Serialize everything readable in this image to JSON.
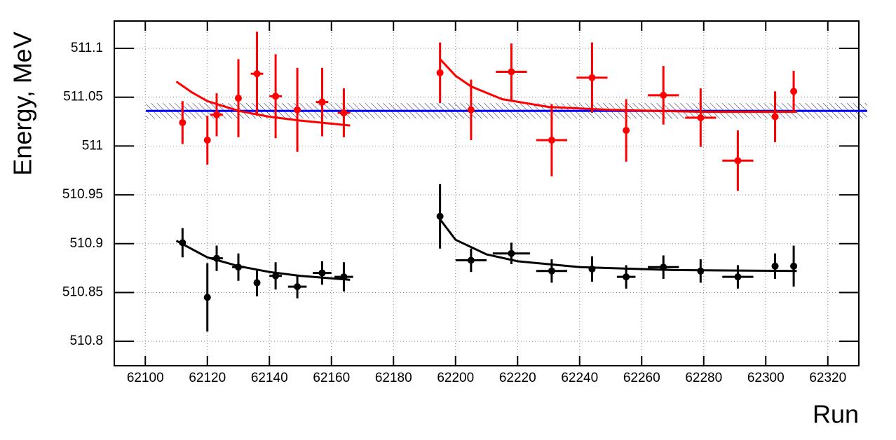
{
  "chart_data": {
    "type": "scatter",
    "x_label": "Run",
    "y_label": "Energy, MeV",
    "xlim": [
      62090,
      62330
    ],
    "ylim": [
      510.775,
      511.128
    ],
    "xticks": [
      62100,
      62120,
      62140,
      62160,
      62180,
      62200,
      62220,
      62240,
      62260,
      62280,
      62300,
      62320
    ],
    "yticks": [
      510.8,
      510.85,
      510.9,
      510.95,
      511,
      511.05,
      511.1
    ],
    "grid": true,
    "series": [
      {
        "color": "#ff0000",
        "x": [
          62112,
          62120,
          62123,
          62130,
          62136,
          62142,
          62149,
          62157,
          62164,
          62195,
          62205,
          62218,
          62231,
          62244,
          62255,
          62267,
          62279,
          62291,
          62303,
          62309
        ],
        "xerr": [
          0,
          0,
          2,
          0,
          2,
          2,
          0,
          2,
          2,
          0,
          0,
          5,
          5,
          5,
          0,
          5,
          5,
          5,
          0,
          0
        ],
        "values": [
          511.024,
          511.006,
          511.032,
          511.049,
          511.074,
          511.051,
          511.037,
          511.045,
          511.034,
          511.075,
          511.037,
          511.076,
          511.006,
          511.07,
          511.016,
          511.052,
          511.029,
          510.985,
          511.03,
          511.056
        ],
        "yerr": [
          0.022,
          0.025,
          0.022,
          0.04,
          0.043,
          0.043,
          0.043,
          0.035,
          0.025,
          0.031,
          0.031,
          0.029,
          0.037,
          0.036,
          0.032,
          0.03,
          0.03,
          0.031,
          0.026,
          0.021
        ]
      },
      {
        "color": "#000000",
        "x": [
          62112,
          62120,
          62123,
          62130,
          62136,
          62142,
          62149,
          62157,
          62164,
          62195,
          62205,
          62218,
          62231,
          62244,
          62255,
          62267,
          62279,
          62291,
          62303,
          62309
        ],
        "xerr": [
          0,
          0,
          2,
          2,
          0,
          2,
          3,
          3,
          3,
          0,
          5,
          6,
          5,
          0,
          3,
          5,
          0,
          5,
          0,
          0
        ],
        "values": [
          510.901,
          510.845,
          510.885,
          510.876,
          510.86,
          510.867,
          510.856,
          510.87,
          510.866,
          510.928,
          510.883,
          510.89,
          510.872,
          510.874,
          510.866,
          510.876,
          510.872,
          510.866,
          510.877,
          510.877
        ],
        "yerr": [
          0.015,
          0.035,
          0.013,
          0.014,
          0.014,
          0.014,
          0.012,
          0.012,
          0.015,
          0.033,
          0.012,
          0.011,
          0.012,
          0.013,
          0.012,
          0.012,
          0.012,
          0.012,
          0.013,
          0.021
        ]
      }
    ],
    "fits": [
      {
        "color": "#ff0000",
        "x": [
          62110,
          62115,
          62120,
          62130,
          62140,
          62150,
          62166
        ],
        "values": [
          511.066,
          511.055,
          511.046,
          511.036,
          511.03,
          511.026,
          511.021
        ]
      },
      {
        "color": "#ff0000",
        "x": [
          62195,
          62200,
          62205,
          62215,
          62230,
          62250,
          62280,
          62310
        ],
        "values": [
          511.089,
          511.072,
          511.061,
          511.048,
          511.04,
          511.037,
          511.035,
          511.035
        ]
      },
      {
        "color": "#000000",
        "x": [
          62110,
          62120,
          62130,
          62140,
          62150,
          62166
        ],
        "values": [
          510.903,
          510.886,
          510.877,
          510.871,
          510.867,
          510.863
        ]
      },
      {
        "color": "#000000",
        "x": [
          62195,
          62200,
          62210,
          62220,
          62240,
          62270,
          62310
        ],
        "values": [
          510.925,
          510.904,
          510.889,
          510.882,
          510.876,
          510.873,
          510.872
        ]
      }
    ],
    "mean_line": {
      "color": "#0000ff",
      "value": 511.036,
      "band": [
        511.028,
        511.044
      ]
    }
  }
}
